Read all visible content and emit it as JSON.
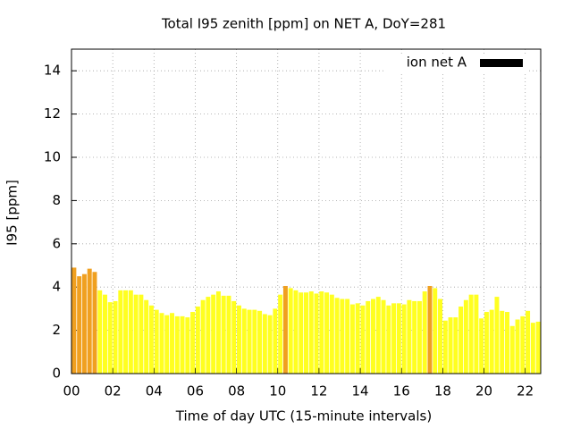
{
  "chart_data": {
    "type": "bar",
    "title": "Total I95 zenith [ppm] on NET A, DoY=281",
    "xlabel": "Time of day UTC (15-minute intervals)",
    "ylabel": "I95 [ppm]",
    "x": [
      0,
      0.25,
      0.5,
      0.75,
      1,
      1.25,
      1.5,
      1.75,
      2,
      2.25,
      2.5,
      2.75,
      3,
      3.25,
      3.5,
      3.75,
      4,
      4.25,
      4.5,
      4.75,
      5,
      5.25,
      5.5,
      5.75,
      6,
      6.25,
      6.5,
      6.75,
      7,
      7.25,
      7.5,
      7.75,
      8,
      8.25,
      8.5,
      8.75,
      9,
      9.25,
      9.5,
      9.75,
      10,
      10.25,
      10.5,
      10.75,
      11,
      11.25,
      11.5,
      11.75,
      12,
      12.25,
      12.5,
      12.75,
      13,
      13.25,
      13.5,
      13.75,
      14,
      14.25,
      14.5,
      14.75,
      15,
      15.25,
      15.5,
      15.75,
      16,
      16.25,
      16.5,
      16.75,
      17,
      17.25,
      17.5,
      17.75,
      18,
      18.25,
      18.5,
      18.75,
      19,
      19.25,
      19.5,
      19.75,
      20,
      20.25,
      20.5,
      20.75,
      21,
      21.25,
      21.5,
      21.75,
      22,
      22.25,
      22.5
    ],
    "series": [
      {
        "name": "ion net A",
        "color": "#000000",
        "values": [
          4.9,
          4.5,
          4.6,
          4.85,
          4.7,
          3.85,
          3.65,
          3.3,
          3.35,
          3.85,
          3.85,
          3.85,
          3.65,
          3.65,
          3.4,
          3.15,
          2.95,
          2.8,
          2.7,
          2.8,
          2.65,
          2.65,
          2.6,
          2.85,
          3.1,
          3.4,
          3.55,
          3.65,
          3.8,
          3.6,
          3.6,
          3.35,
          3.15,
          3.0,
          2.95,
          2.95,
          2.9,
          2.75,
          2.7,
          3.0,
          3.65,
          4.05,
          3.95,
          3.85,
          3.75,
          3.75,
          3.8,
          3.7,
          3.8,
          3.75,
          3.65,
          3.5,
          3.45,
          3.45,
          3.2,
          3.25,
          3.15,
          3.35,
          3.45,
          3.55,
          3.4,
          3.15,
          3.25,
          3.25,
          3.2,
          3.4,
          3.35,
          3.35,
          3.8,
          4.05,
          3.95,
          3.45,
          2.45,
          2.6,
          2.6,
          3.1,
          3.4,
          3.65,
          3.65,
          2.55,
          2.85,
          2.95,
          3.55,
          2.9,
          2.85,
          2.2,
          2.5,
          2.65,
          2.9,
          2.35,
          2.4
        ],
        "colors": [
          "#f0a020",
          "#f0a020",
          "#f0a020",
          "#f0a020",
          "#f0a020",
          "#ffff20",
          "#ffff20",
          "#ffff20",
          "#ffff20",
          "#ffff20",
          "#ffff20",
          "#ffff20",
          "#ffff20",
          "#ffff20",
          "#ffff20",
          "#ffff20",
          "#ffff20",
          "#ffff20",
          "#ffff20",
          "#ffff20",
          "#ffff20",
          "#ffff20",
          "#ffff20",
          "#ffff20",
          "#ffff20",
          "#ffff20",
          "#ffff20",
          "#ffff20",
          "#ffff20",
          "#ffff20",
          "#ffff20",
          "#ffff20",
          "#ffff20",
          "#ffff20",
          "#ffff20",
          "#ffff20",
          "#ffff20",
          "#ffff20",
          "#ffff20",
          "#ffff20",
          "#ffff20",
          "#f0a020",
          "#ffff20",
          "#ffff20",
          "#ffff20",
          "#ffff20",
          "#ffff20",
          "#ffff20",
          "#ffff20",
          "#ffff20",
          "#ffff20",
          "#ffff20",
          "#ffff20",
          "#ffff20",
          "#ffff20",
          "#ffff20",
          "#ffff20",
          "#ffff20",
          "#ffff20",
          "#ffff20",
          "#ffff20",
          "#ffff20",
          "#ffff20",
          "#ffff20",
          "#ffff20",
          "#ffff20",
          "#ffff20",
          "#ffff20",
          "#ffff20",
          "#f0a020",
          "#ffff20",
          "#ffff20",
          "#ffff20",
          "#ffff20",
          "#ffff20",
          "#ffff20",
          "#ffff20",
          "#ffff20",
          "#ffff20",
          "#ffff20",
          "#ffff20",
          "#ffff20",
          "#ffff20",
          "#ffff20",
          "#ffff20",
          "#ffff20",
          "#ffff20",
          "#ffff20",
          "#ffff20",
          "#ffff20",
          "#ffff20"
        ]
      }
    ],
    "xlim": [
      0,
      22.75
    ],
    "xticks": [
      {
        "value": 0,
        "label": "00"
      },
      {
        "value": 2,
        "label": "02"
      },
      {
        "value": 4,
        "label": "04"
      },
      {
        "value": 6,
        "label": "06"
      },
      {
        "value": 8,
        "label": "08"
      },
      {
        "value": 10,
        "label": "10"
      },
      {
        "value": 12,
        "label": "12"
      },
      {
        "value": 14,
        "label": "14"
      },
      {
        "value": 16,
        "label": "16"
      },
      {
        "value": 18,
        "label": "18"
      },
      {
        "value": 20,
        "label": "20"
      },
      {
        "value": 22,
        "label": "22"
      }
    ],
    "ylim": [
      0,
      15
    ],
    "yticks": [
      0,
      2,
      4,
      6,
      8,
      10,
      12,
      14
    ],
    "grid": true,
    "legend": "top-right"
  }
}
